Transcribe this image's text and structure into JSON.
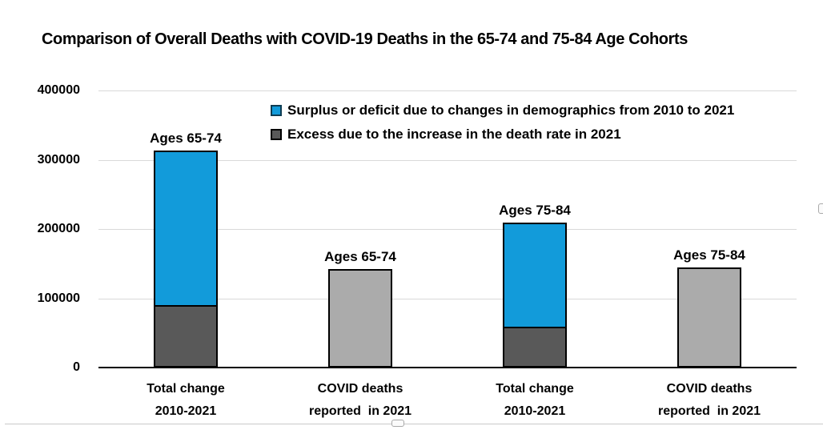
{
  "chart_data": {
    "type": "bar",
    "stacked": true,
    "title": "Comparison of Overall Deaths with COVID-19 Deaths in the 65-74 and 75-84 Age Cohorts",
    "xlabel": "",
    "ylabel": "",
    "ylim": [
      0,
      400000
    ],
    "yticks": [
      0,
      100000,
      200000,
      300000,
      400000
    ],
    "grid": "horizontal",
    "colors": {
      "surplus_blue": "#129BDA",
      "excess_dark_gray": "#595959",
      "covid_light_gray": "#ABABAB",
      "gridline": "#D9D9D9",
      "axis": "#000000"
    },
    "legend": {
      "position": "top-center",
      "items": [
        {
          "label": "Surplus or deficit due to changes in demographics from 2010 to 2021",
          "color": "#129BDA"
        },
        {
          "label": "Excess due to the increase in the death rate in 2021",
          "color": "#595959"
        }
      ]
    },
    "bars": [
      {
        "category": "Total change\n2010-2021",
        "bar_label": "Ages 65-74",
        "total": 316000,
        "segments": [
          {
            "name": "Excess due to the increase in the death rate in 2021",
            "value": 90000,
            "color": "#595959"
          },
          {
            "name": "Surplus or deficit due to changes in demographics from 2010 to 2021",
            "value": 226000,
            "color": "#129BDA"
          }
        ]
      },
      {
        "category": "COVID deaths\nreported  in 2021",
        "bar_label": "Ages 65-74",
        "total": 142000,
        "segments": [
          {
            "name": "COVID deaths reported in 2021",
            "value": 142000,
            "color": "#ABABAB"
          }
        ]
      },
      {
        "category": "Total change\n2010-2021",
        "bar_label": "Ages 75-84",
        "total": 212000,
        "segments": [
          {
            "name": "Excess due to the increase in the death rate in 2021",
            "value": 59000,
            "color": "#595959"
          },
          {
            "name": "Surplus or deficit due to changes in demographics from 2010 to 2021",
            "value": 153000,
            "color": "#129BDA"
          }
        ]
      },
      {
        "category": "COVID deaths\nreported  in 2021",
        "bar_label": "Ages 75-84",
        "total": 145000,
        "segments": [
          {
            "name": "COVID deaths reported in 2021",
            "value": 145000,
            "color": "#ABABAB"
          }
        ]
      }
    ]
  }
}
